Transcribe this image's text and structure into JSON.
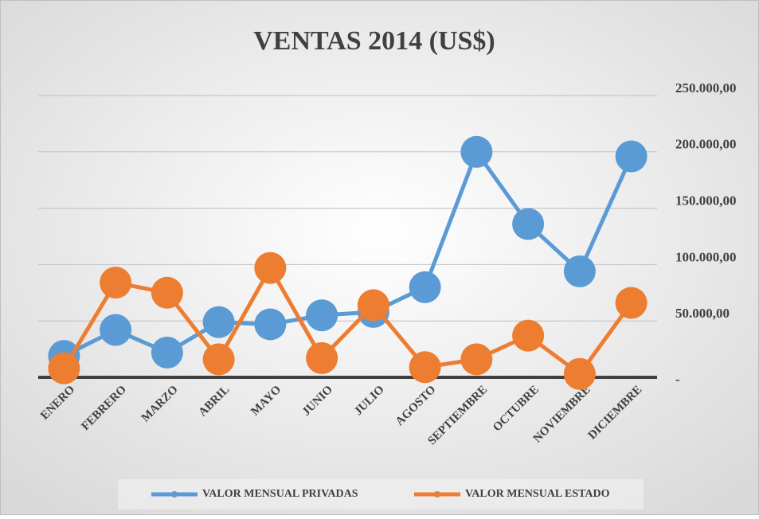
{
  "chart_data": {
    "type": "line",
    "title": "VENTAS  2014 (US$)",
    "categories": [
      "ENERO",
      "FEBRERO",
      "MARZO",
      "ABRIL",
      "MAYO",
      "JUNIO",
      "JULIO",
      "AGOSTO",
      "SEPTIEMBRE",
      "OCTUBRE",
      "NOVIEMBRE",
      "DICIEMBRE"
    ],
    "series": [
      {
        "name": "VALOR MENSUAL PRIVADAS",
        "color": "#5b9bd5",
        "values": [
          19000,
          42000,
          22000,
          49000,
          47000,
          55000,
          58000,
          80000,
          200000,
          136000,
          94000,
          196000
        ]
      },
      {
        "name": "VALOR MENSUAL ESTADO",
        "color": "#ed7d31",
        "values": [
          8000,
          84000,
          75000,
          16000,
          97000,
          17000,
          64000,
          9000,
          16000,
          37000,
          3000,
          66000
        ]
      }
    ],
    "ylim": [
      0,
      250000
    ],
    "yticks": [
      {
        "value": 0,
        "label": "-"
      },
      {
        "value": 50000,
        "label": "50.000,00"
      },
      {
        "value": 100000,
        "label": "100.000,00"
      },
      {
        "value": 150000,
        "label": "150.000,00"
      },
      {
        "value": 200000,
        "label": "200.000,00"
      },
      {
        "value": 250000,
        "label": "250.000,00"
      }
    ],
    "grid": true,
    "legend": "bottom"
  }
}
